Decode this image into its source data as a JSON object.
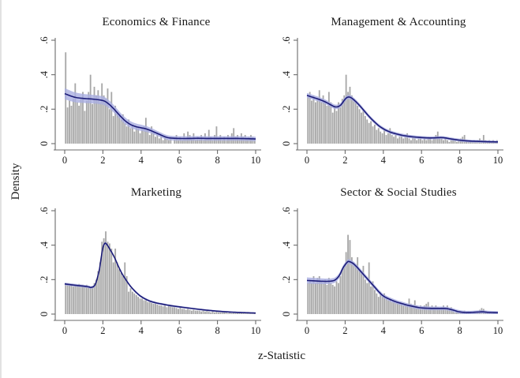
{
  "figure": {
    "colors": {
      "bar": "#a8a8a8",
      "band": "#a9aee1",
      "line": "#1c1c78",
      "axis": "#6b6b6b",
      "text": "#1a1a1a",
      "background": "#ffffff"
    }
  },
  "chart_data": {
    "type": "bar",
    "subtype": "histogram-with-kernel-density-and-confidence-band",
    "layout": "2x2-small-multiples",
    "xlabel": "z-Statistic",
    "ylabel": "Density",
    "xlim": [
      0,
      10
    ],
    "ylim": [
      0,
      0.6
    ],
    "x_ticks": [
      0,
      2,
      4,
      6,
      8,
      10
    ],
    "x_tick_labels": [
      "0",
      "2",
      "4",
      "6",
      "8",
      "10"
    ],
    "y_ticks": [
      0,
      0.2,
      0.4,
      0.6
    ],
    "y_tick_labels": [
      "0",
      ".2",
      ".4",
      ".6"
    ],
    "bin_width": 0.1,
    "grid": false,
    "legend": "none",
    "panels": [
      {
        "title": "Economics & Finance",
        "bins": [
          0.53,
          0.21,
          0.25,
          0.22,
          0.26,
          0.35,
          0.24,
          0.22,
          0.26,
          0.3,
          0.19,
          0.25,
          0.3,
          0.4,
          0.23,
          0.33,
          0.28,
          0.31,
          0.24,
          0.35,
          0.28,
          0.26,
          0.32,
          0.2,
          0.3,
          0.16,
          0.22,
          0.18,
          0.16,
          0.14,
          0.17,
          0.12,
          0.1,
          0.14,
          0.09,
          0.11,
          0.07,
          0.1,
          0.09,
          0.06,
          0.09,
          0.1,
          0.15,
          0.08,
          0.05,
          0.1,
          0.07,
          0.04,
          0.06,
          0.03,
          0.05,
          0.02,
          0.04,
          0.03,
          0.02,
          0.04,
          0.0,
          0.03,
          0.05,
          0.02,
          0.04,
          0.02,
          0.06,
          0.03,
          0.07,
          0.05,
          0.03,
          0.06,
          0.02,
          0.04,
          0.03,
          0.05,
          0.02,
          0.06,
          0.03,
          0.08,
          0.04,
          0.02,
          0.05,
          0.1,
          0.03,
          0.05,
          0.02,
          0.04,
          0.02,
          0.05,
          0.03,
          0.06,
          0.09,
          0.04,
          0.05,
          0.03,
          0.06,
          0.04,
          0.05,
          0.03,
          0.04,
          0.05,
          0.04,
          0.03
        ],
        "line_x": [
          0,
          0.5,
          1,
          1.5,
          2,
          2.25,
          2.5,
          2.75,
          3,
          3.25,
          3.5,
          3.75,
          4,
          4.25,
          4.5,
          4.75,
          5,
          5.25,
          5.5,
          6,
          6.5,
          7,
          7.5,
          8,
          8.5,
          9,
          9.5,
          10
        ],
        "line_y": [
          0.29,
          0.27,
          0.262,
          0.258,
          0.25,
          0.235,
          0.21,
          0.18,
          0.15,
          0.125,
          0.108,
          0.098,
          0.092,
          0.086,
          0.076,
          0.064,
          0.052,
          0.04,
          0.033,
          0.03,
          0.03,
          0.031,
          0.03,
          0.03,
          0.03,
          0.03,
          0.029,
          0.027
        ],
        "band_halfwidth": [
          [
            0,
            0.032
          ],
          [
            1,
            0.026
          ],
          [
            2,
            0.024
          ],
          [
            3,
            0.02
          ],
          [
            4,
            0.018
          ],
          [
            5,
            0.014
          ],
          [
            6,
            0.013
          ],
          [
            10,
            0.013
          ]
        ]
      },
      {
        "title": "Management & Accounting",
        "bins": [
          0.27,
          0.3,
          0.25,
          0.28,
          0.24,
          0.26,
          0.31,
          0.24,
          0.28,
          0.25,
          0.22,
          0.3,
          0.24,
          0.18,
          0.22,
          0.19,
          0.24,
          0.21,
          0.26,
          0.28,
          0.4,
          0.3,
          0.33,
          0.28,
          0.26,
          0.24,
          0.22,
          0.2,
          0.18,
          0.2,
          0.16,
          0.14,
          0.12,
          0.13,
          0.1,
          0.11,
          0.08,
          0.09,
          0.07,
          0.06,
          0.08,
          0.05,
          0.06,
          0.09,
          0.05,
          0.04,
          0.05,
          0.03,
          0.04,
          0.05,
          0.03,
          0.04,
          0.06,
          0.03,
          0.02,
          0.04,
          0.03,
          0.02,
          0.03,
          0.04,
          0.02,
          0.03,
          0.02,
          0.04,
          0.03,
          0.02,
          0.03,
          0.05,
          0.07,
          0.03,
          0.04,
          0.02,
          0.03,
          0.02,
          0.01,
          0.02,
          0.03,
          0.02,
          0.01,
          0.02,
          0.03,
          0.04,
          0.05,
          0.02,
          0.01,
          0.02,
          0.01,
          0.02,
          0.01,
          0.02,
          0.03,
          0.02,
          0.05,
          0.02,
          0.01,
          0.02,
          0.01,
          0.02,
          0.01,
          0.02
        ],
        "line_x": [
          0,
          0.5,
          0.75,
          1,
          1.25,
          1.5,
          1.75,
          2,
          2.15,
          2.3,
          2.5,
          2.75,
          3,
          3.25,
          3.5,
          3.75,
          4,
          4.25,
          4.5,
          5,
          5.5,
          6,
          6.5,
          7,
          7.25,
          7.5,
          8,
          8.5,
          9,
          9.5,
          10
        ],
        "line_y": [
          0.28,
          0.262,
          0.252,
          0.24,
          0.225,
          0.213,
          0.222,
          0.258,
          0.27,
          0.267,
          0.25,
          0.222,
          0.19,
          0.158,
          0.13,
          0.105,
          0.086,
          0.072,
          0.062,
          0.048,
          0.04,
          0.035,
          0.033,
          0.035,
          0.033,
          0.028,
          0.02,
          0.015,
          0.013,
          0.011,
          0.01
        ],
        "band_halfwidth": [
          [
            0,
            0.014
          ],
          [
            2,
            0.013
          ],
          [
            4,
            0.01
          ],
          [
            7,
            0.009
          ],
          [
            10,
            0.007
          ]
        ]
      },
      {
        "title": "Marketing",
        "bins": [
          0.175,
          0.17,
          0.165,
          0.17,
          0.16,
          0.17,
          0.165,
          0.175,
          0.16,
          0.17,
          0.165,
          0.17,
          0.16,
          0.15,
          0.15,
          0.18,
          0.2,
          0.25,
          0.3,
          0.42,
          0.44,
          0.48,
          0.42,
          0.41,
          0.38,
          0.3,
          0.38,
          0.3,
          0.26,
          0.24,
          0.22,
          0.3,
          0.22,
          0.13,
          0.15,
          0.13,
          0.12,
          0.11,
          0.1,
          0.09,
          0.09,
          0.08,
          0.08,
          0.07,
          0.07,
          0.065,
          0.06,
          0.06,
          0.055,
          0.05,
          0.05,
          0.045,
          0.05,
          0.04,
          0.055,
          0.05,
          0.04,
          0.04,
          0.035,
          0.03,
          0.04,
          0.03,
          0.03,
          0.025,
          0.03,
          0.025,
          0.02,
          0.025,
          0.02,
          0.02,
          0.02,
          0.015,
          0.02,
          0.015,
          0.02,
          0.015,
          0.01,
          0.015,
          0.01,
          0.015,
          0.01,
          0.01,
          0.015,
          0.01,
          0.01,
          0.005,
          0.01,
          0.005,
          0.01,
          0.005,
          0.005,
          0.01,
          0.005,
          0.005,
          0.005,
          0.005,
          0.005,
          0.005,
          0.005,
          0.005
        ],
        "line_x": [
          0,
          0.5,
          1,
          1.25,
          1.4,
          1.6,
          1.8,
          1.9,
          2,
          2.1,
          2.2,
          2.4,
          2.6,
          2.8,
          3,
          3.2,
          3.4,
          3.6,
          3.8,
          4,
          4.25,
          4.5,
          4.75,
          5,
          5.5,
          6,
          6.5,
          7,
          7.5,
          8,
          8.5,
          9,
          9.5,
          10
        ],
        "line_y": [
          0.175,
          0.168,
          0.162,
          0.158,
          0.155,
          0.172,
          0.25,
          0.32,
          0.385,
          0.41,
          0.405,
          0.37,
          0.33,
          0.28,
          0.235,
          0.2,
          0.168,
          0.142,
          0.12,
          0.102,
          0.086,
          0.074,
          0.066,
          0.06,
          0.05,
          0.042,
          0.035,
          0.028,
          0.022,
          0.017,
          0.013,
          0.01,
          0.008,
          0.006
        ],
        "band_halfwidth": [
          [
            0,
            0.008
          ],
          [
            2,
            0.008
          ],
          [
            5,
            0.006
          ],
          [
            10,
            0.004
          ]
        ]
      },
      {
        "title": "Sector & Social Studies",
        "bins": [
          0.18,
          0.19,
          0.18,
          0.22,
          0.18,
          0.21,
          0.22,
          0.19,
          0.18,
          0.2,
          0.17,
          0.21,
          0.18,
          0.17,
          0.16,
          0.19,
          0.18,
          0.22,
          0.26,
          0.28,
          0.36,
          0.46,
          0.43,
          0.33,
          0.3,
          0.28,
          0.33,
          0.26,
          0.24,
          0.28,
          0.2,
          0.18,
          0.3,
          0.16,
          0.19,
          0.14,
          0.12,
          0.1,
          0.13,
          0.1,
          0.12,
          0.09,
          0.08,
          0.09,
          0.07,
          0.08,
          0.065,
          0.07,
          0.06,
          0.065,
          0.05,
          0.06,
          0.05,
          0.09,
          0.06,
          0.05,
          0.08,
          0.05,
          0.04,
          0.05,
          0.04,
          0.05,
          0.06,
          0.07,
          0.04,
          0.05,
          0.04,
          0.05,
          0.04,
          0.03,
          0.04,
          0.05,
          0.04,
          0.05,
          0.03,
          0.04,
          0.02,
          0.01,
          0.02,
          0.01,
          0.015,
          0.01,
          0.02,
          0.01,
          0.015,
          0.01,
          0.005,
          0.01,
          0.005,
          0.01,
          0.025,
          0.035,
          0.03,
          0.015,
          0.01,
          0.005,
          0.01,
          0.005,
          0.005,
          0.005
        ],
        "line_x": [
          0,
          0.5,
          1,
          1.3,
          1.5,
          1.7,
          1.9,
          2.1,
          2.2,
          2.4,
          2.6,
          2.8,
          3,
          3.2,
          3.4,
          3.6,
          3.8,
          4,
          4.25,
          4.5,
          4.75,
          5,
          5.25,
          5.5,
          5.75,
          6,
          6.5,
          7,
          7.3,
          7.6,
          7.9,
          8.2,
          8.5,
          9,
          9.2,
          9.5,
          10
        ],
        "line_y": [
          0.195,
          0.192,
          0.19,
          0.192,
          0.2,
          0.225,
          0.27,
          0.3,
          0.305,
          0.295,
          0.275,
          0.25,
          0.225,
          0.2,
          0.175,
          0.15,
          0.125,
          0.105,
          0.09,
          0.078,
          0.068,
          0.06,
          0.052,
          0.046,
          0.04,
          0.036,
          0.033,
          0.033,
          0.032,
          0.025,
          0.015,
          0.01,
          0.009,
          0.012,
          0.013,
          0.01,
          0.008
        ],
        "band_halfwidth": [
          [
            0,
            0.018
          ],
          [
            2,
            0.014
          ],
          [
            4,
            0.012
          ],
          [
            8,
            0.01
          ],
          [
            10,
            0.009
          ]
        ]
      }
    ]
  }
}
